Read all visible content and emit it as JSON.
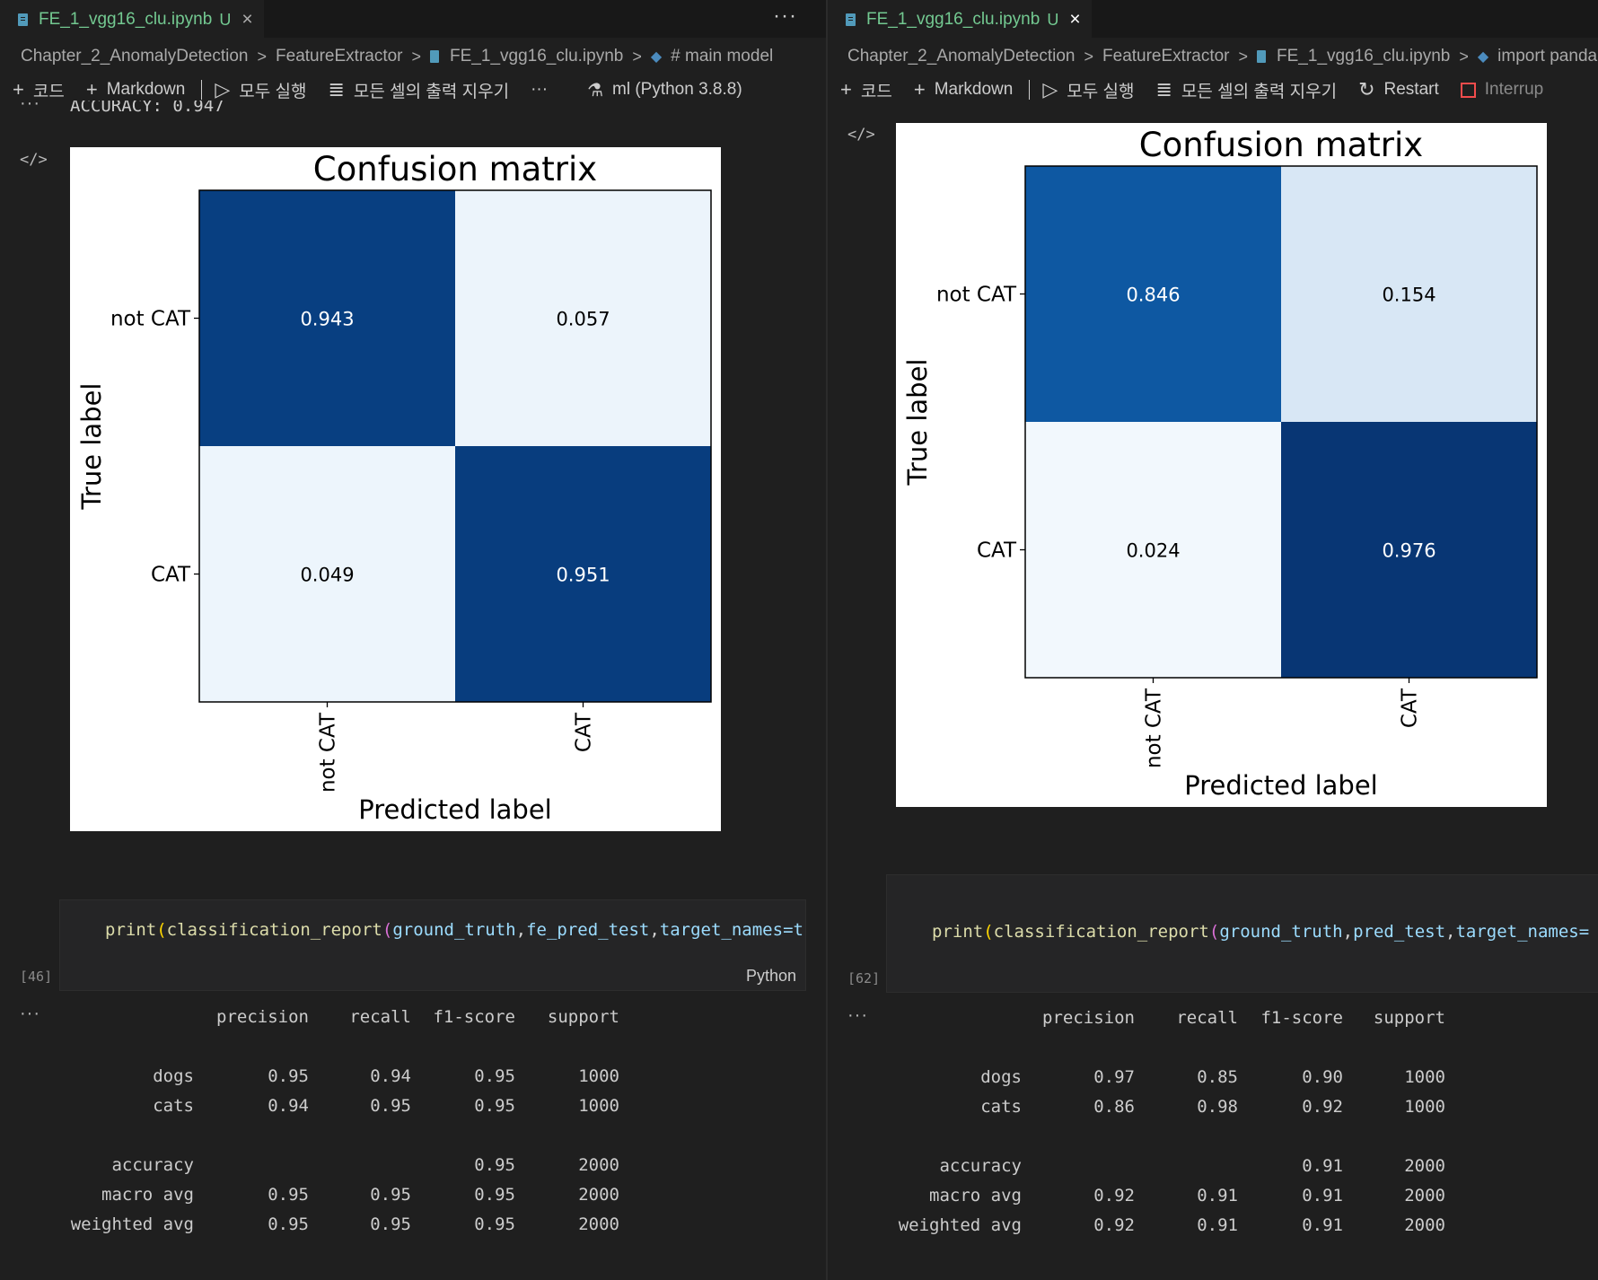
{
  "left": {
    "tab": {
      "title": "FE_1_vgg16_clu.ipynb",
      "status": "U",
      "close": "×"
    },
    "more": "···",
    "breadcrumb": [
      "Chapter_2_AnomalyDetection",
      "FeatureExtractor",
      "FE_1_vgg16_clu.ipynb",
      "# main model"
    ],
    "toolbar": {
      "code": "코드",
      "markdown": "Markdown",
      "run_all": "모두 실행",
      "clear_outputs": "모든 셀의 출력 지우기",
      "more": "···",
      "kernel": "ml (Python 3.8.8)"
    },
    "partial_output": "ACCURACY: 0.947",
    "chart_data": {
      "type": "heatmap",
      "title": "Confusion matrix",
      "xlabel": "Predicted label",
      "ylabel": "True label",
      "x_categories": [
        "not CAT",
        "CAT"
      ],
      "y_categories": [
        "not CAT",
        "CAT"
      ],
      "values": [
        [
          0.943,
          0.057
        ],
        [
          0.049,
          0.951
        ]
      ],
      "colormap": "Blues",
      "value_range": [
        0,
        1
      ]
    },
    "code_cell": {
      "exec_count": "[46]",
      "language": "Python",
      "fn1": "print",
      "fn2": "classification_report",
      "arg1": "ground_truth",
      "arg2": "fe_pred_test",
      "arg3": "target_names=t"
    },
    "report": {
      "headers": [
        "precision",
        "recall",
        "f1-score",
        "support"
      ],
      "rows": [
        {
          "label": "dogs",
          "values": [
            "0.95",
            "0.94",
            "0.95",
            "1000"
          ]
        },
        {
          "label": "cats",
          "values": [
            "0.94",
            "0.95",
            "0.95",
            "1000"
          ]
        },
        {
          "label": "accuracy",
          "values": [
            "",
            "",
            "0.95",
            "2000"
          ]
        },
        {
          "label": "macro avg",
          "values": [
            "0.95",
            "0.95",
            "0.95",
            "2000"
          ]
        },
        {
          "label": "weighted avg",
          "values": [
            "0.95",
            "0.95",
            "0.95",
            "2000"
          ]
        }
      ]
    }
  },
  "right": {
    "tab": {
      "title": "FE_1_vgg16_clu.ipynb",
      "status": "U",
      "close": "×"
    },
    "breadcrumb": [
      "Chapter_2_AnomalyDetection",
      "FeatureExtractor",
      "FE_1_vgg16_clu.ipynb",
      "import panda"
    ],
    "toolbar": {
      "code": "코드",
      "markdown": "Markdown",
      "run_all": "모두 실행",
      "clear_outputs": "모든 셀의 출력 지우기",
      "restart": "Restart",
      "interrupt": "Interrup"
    },
    "chart_data": {
      "type": "heatmap",
      "title": "Confusion matrix",
      "xlabel": "Predicted label",
      "ylabel": "True label",
      "x_categories": [
        "not CAT",
        "CAT"
      ],
      "y_categories": [
        "not CAT",
        "CAT"
      ],
      "values": [
        [
          0.846,
          0.154
        ],
        [
          0.024,
          0.976
        ]
      ],
      "colormap": "Blues",
      "value_range": [
        0,
        1
      ]
    },
    "code_cell": {
      "exec_count": "[62]",
      "fn1": "print",
      "fn2": "classification_report",
      "arg1": "ground_truth",
      "arg2": "pred_test",
      "arg3": "target_names="
    },
    "report": {
      "headers": [
        "precision",
        "recall",
        "f1-score",
        "support"
      ],
      "rows": [
        {
          "label": "dogs",
          "values": [
            "0.97",
            "0.85",
            "0.90",
            "1000"
          ]
        },
        {
          "label": "cats",
          "values": [
            "0.86",
            "0.98",
            "0.92",
            "1000"
          ]
        },
        {
          "label": "accuracy",
          "values": [
            "",
            "",
            "0.91",
            "2000"
          ]
        },
        {
          "label": "macro avg",
          "values": [
            "0.92",
            "0.91",
            "0.91",
            "2000"
          ]
        },
        {
          "label": "weighted avg",
          "values": [
            "0.92",
            "0.91",
            "0.91",
            "2000"
          ]
        }
      ]
    }
  }
}
